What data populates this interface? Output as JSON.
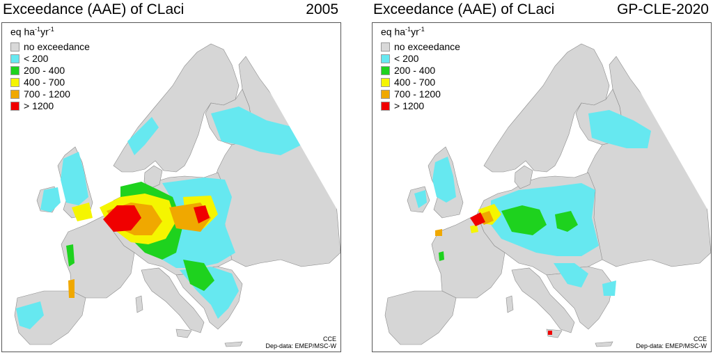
{
  "left_panel": {
    "title": "Exceedance (AAE) of CLaci",
    "scenario": "2005",
    "legend": {
      "unit_base": "eq ha",
      "unit_exp1": "-1",
      "unit_mid": "yr",
      "unit_exp2": "-1",
      "items": [
        {
          "label": "no exceedance",
          "color": "#d9d9d9"
        },
        {
          "label": "< 200",
          "color": "#66e8f0"
        },
        {
          "label": "200 - 400",
          "color": "#1ed21e"
        },
        {
          "label": "400 - 700",
          "color": "#f5f500"
        },
        {
          "label": "700 - 1200",
          "color": "#f0a800"
        },
        {
          "label": "> 1200",
          "color": "#f00000"
        }
      ]
    },
    "credit_1": "CCE",
    "credit_2": "Dep-data: EMEP/MSC-W"
  },
  "right_panel": {
    "title": "Exceedance (AAE) of CLaci",
    "scenario": "GP-CLE-2020",
    "legend": {
      "unit_base": "eq ha",
      "unit_exp1": "-1",
      "unit_mid": "yr",
      "unit_exp2": "-1",
      "items": [
        {
          "label": "no exceedance",
          "color": "#d9d9d9"
        },
        {
          "label": "< 200",
          "color": "#66e8f0"
        },
        {
          "label": "200 - 400",
          "color": "#1ed21e"
        },
        {
          "label": "400 - 700",
          "color": "#f5f500"
        },
        {
          "label": "700 - 1200",
          "color": "#f0a800"
        },
        {
          "label": "> 1200",
          "color": "#f00000"
        }
      ]
    },
    "credit_1": "CCE",
    "credit_2": "Dep-data: EMEP/MSC-W"
  }
}
